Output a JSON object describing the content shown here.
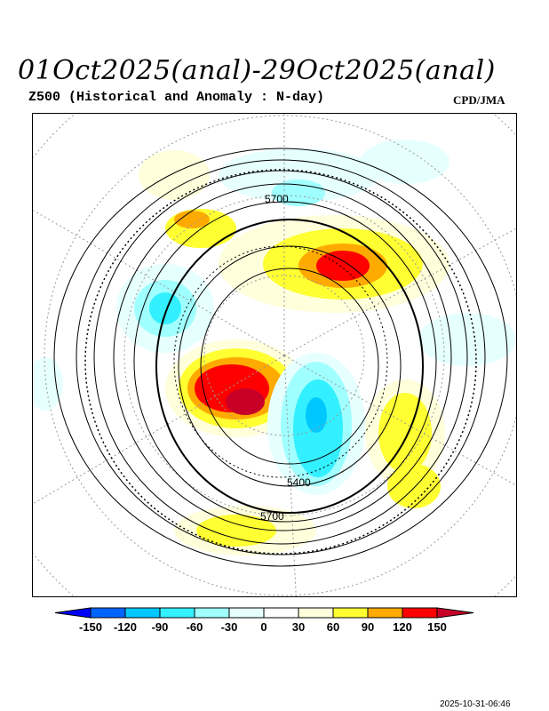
{
  "title": "01Oct2025(anal)-29Oct2025(anal)",
  "subtitle": "Z500 (Historical and Anomaly : N-day)",
  "agency": "CPD/JMA",
  "contour_labels": [
    "5700",
    "5400",
    "5700"
  ],
  "colorbar": {
    "ticks": [
      "-150",
      "-120",
      "-90",
      "-60",
      "-30",
      "0",
      "30",
      "60",
      "90",
      "120",
      "150"
    ],
    "colors": [
      "#0000ff",
      "#0064ff",
      "#00c8ff",
      "#32f0ff",
      "#a0ffff",
      "#e6ffff",
      "#ffffff",
      "#ffffdc",
      "#ffff32",
      "#ffaa00",
      "#ff0000",
      "#c80028"
    ]
  },
  "timestamp": "2025-10-31-06:46"
}
